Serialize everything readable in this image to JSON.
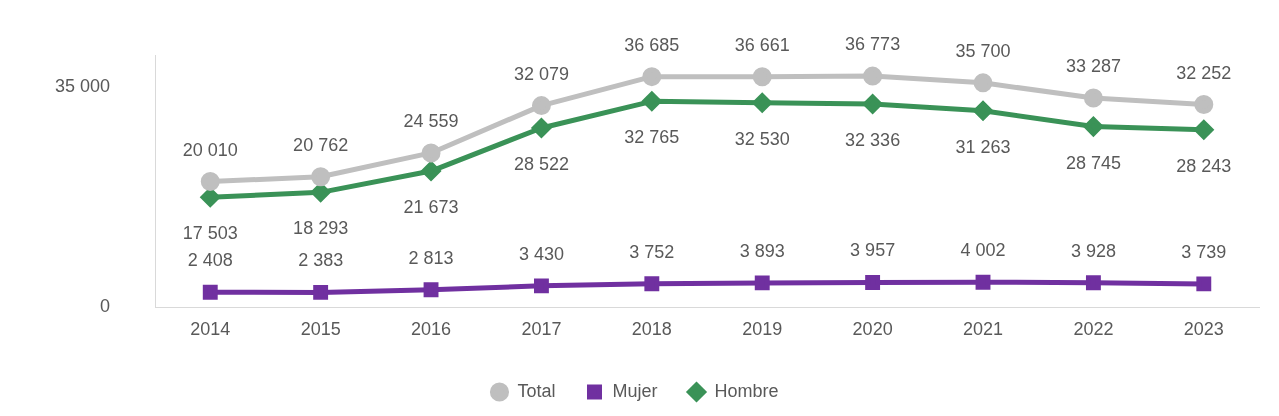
{
  "chart_data": {
    "type": "line",
    "categories": [
      "2014",
      "2015",
      "2016",
      "2017",
      "2018",
      "2019",
      "2020",
      "2021",
      "2022",
      "2023"
    ],
    "series": [
      {
        "name": "Total",
        "color": "#bfbfbf",
        "marker": "circle",
        "values": [
          20010,
          20762,
          24559,
          32079,
          36685,
          36661,
          36773,
          35700,
          33287,
          32252
        ]
      },
      {
        "name": "Mujer",
        "color": "#7030a0",
        "marker": "square",
        "values": [
          2408,
          2383,
          2813,
          3430,
          3752,
          3893,
          3957,
          4002,
          3928,
          3739
        ]
      },
      {
        "name": "Hombre",
        "color": "#3a9257",
        "marker": "diamond",
        "values": [
          17503,
          18293,
          21673,
          28522,
          32765,
          32530,
          32336,
          31263,
          28745,
          28243
        ]
      }
    ],
    "ylim": [
      0,
      40000
    ],
    "yticks": [
      0,
      35000
    ],
    "grid": false,
    "legend": "bottom",
    "data_labels": true,
    "line_style": "solid"
  }
}
